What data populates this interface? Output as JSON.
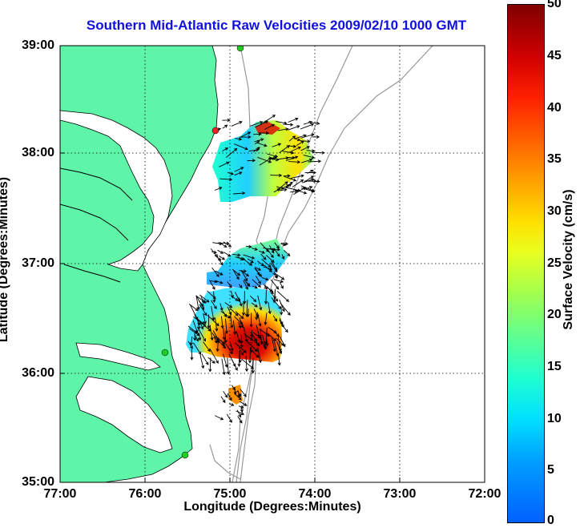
{
  "title": "Southern Mid-Atlantic Raw Velocities 2009/02/10 1000 GMT",
  "xlabel": "Longitude (Degrees:Minutes)",
  "ylabel": "Latitude (Degrees:Minutes)",
  "yticks": [
    "39:00",
    "38:00",
    "37:00",
    "36:00",
    "35:00"
  ],
  "xticks": [
    "77:00",
    "76:00",
    "75:00",
    "74:00",
    "73:00",
    "72:00"
  ],
  "colorbar": {
    "label": "Surface Velocity (cm/s)",
    "ticks": [
      "50",
      "45",
      "40",
      "35",
      "30",
      "25",
      "20",
      "15",
      "10",
      "5",
      "0"
    ],
    "range": [
      0,
      50
    ]
  },
  "colors": {
    "land": "#5ef5a8",
    "title": "#1010e0",
    "bathymetry": "#999999",
    "station_green": "#22cc22",
    "station_red": "#ee2222"
  }
}
